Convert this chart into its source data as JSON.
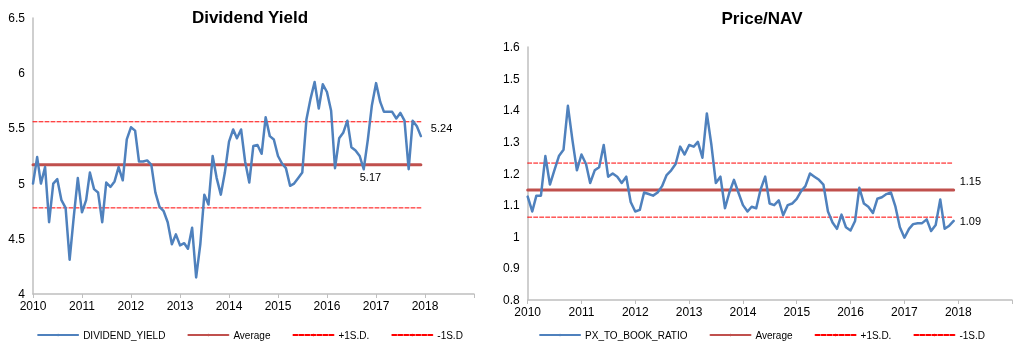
{
  "chart_data": [
    {
      "type": "line",
      "title": "Dividend Yield",
      "marker": "none",
      "legend": "bottom",
      "grid": false,
      "x": [
        "2010-01",
        "2010-02",
        "2010-03",
        "2010-04",
        "2010-05",
        "2010-06",
        "2010-07",
        "2010-08",
        "2010-09",
        "2010-10",
        "2010-11",
        "2010-12",
        "2011-01",
        "2011-02",
        "2011-03",
        "2011-04",
        "2011-05",
        "2011-06",
        "2011-07",
        "2011-08",
        "2011-09",
        "2011-10",
        "2011-11",
        "2011-12",
        "2012-01",
        "2012-02",
        "2012-03",
        "2012-04",
        "2012-05",
        "2012-06",
        "2012-07",
        "2012-08",
        "2012-09",
        "2012-10",
        "2012-11",
        "2012-12",
        "2013-01",
        "2013-02",
        "2013-03",
        "2013-04",
        "2013-05",
        "2013-06",
        "2013-07",
        "2013-08",
        "2013-09",
        "2013-10",
        "2013-11",
        "2013-12",
        "2014-01",
        "2014-02",
        "2014-03",
        "2014-04",
        "2014-05",
        "2014-06",
        "2014-07",
        "2014-08",
        "2014-09",
        "2014-10",
        "2014-11",
        "2014-12",
        "2015-01",
        "2015-02",
        "2015-03",
        "2015-04",
        "2015-05",
        "2015-06",
        "2015-07",
        "2015-08",
        "2015-09",
        "2015-10",
        "2015-11",
        "2015-12",
        "2016-01",
        "2016-02",
        "2016-03",
        "2016-04",
        "2016-05",
        "2016-06",
        "2016-07",
        "2016-08",
        "2016-09",
        "2016-10",
        "2016-11",
        "2016-12",
        "2017-01",
        "2017-02",
        "2017-03",
        "2017-04",
        "2017-05",
        "2017-06",
        "2017-07",
        "2017-08",
        "2017-09",
        "2017-10",
        "2017-11",
        "2017-12"
      ],
      "xlim": [
        "2010",
        "2019"
      ],
      "xticks": [
        "2010",
        "2011",
        "2012",
        "2013",
        "2014",
        "2015",
        "2016",
        "2017",
        "2018",
        {
          "value": "2019",
          "label": null
        }
      ],
      "ylim": [
        4,
        6.5
      ],
      "yticks": [
        4,
        4.5,
        5,
        5.5,
        6,
        6.5
      ],
      "series": [
        {
          "name": "DIVIDEND_YIELD",
          "color": "#4f81bd",
          "line_style": "solid",
          "values": [
            5.0,
            5.24,
            5.0,
            5.15,
            4.65,
            5.0,
            5.04,
            4.85,
            4.78,
            4.31,
            4.7,
            5.05,
            4.74,
            4.85,
            5.1,
            4.95,
            4.92,
            4.65,
            5.01,
            4.97,
            5.02,
            5.15,
            5.03,
            5.4,
            5.51,
            5.48,
            5.2,
            5.2,
            5.21,
            5.17,
            4.92,
            4.79,
            4.75,
            4.65,
            4.45,
            4.54,
            4.44,
            4.46,
            4.41,
            4.6,
            4.15,
            4.45,
            4.9,
            4.81,
            5.25,
            5.05,
            4.9,
            5.1,
            5.38,
            5.49,
            5.41,
            5.49,
            5.2,
            5.01,
            5.34,
            5.35,
            5.27,
            5.6,
            5.43,
            5.4,
            5.25,
            5.18,
            5.14,
            4.98,
            5.0,
            5.05,
            5.1,
            5.58,
            5.77,
            5.92,
            5.68,
            5.9,
            5.83,
            5.66,
            5.14,
            5.41,
            5.46,
            5.57,
            5.33,
            5.3,
            5.25,
            5.13,
            5.4,
            5.71,
            5.91,
            5.74,
            5.65,
            5.65,
            5.65,
            5.59,
            5.64,
            5.57,
            5.13,
            5.57,
            5.52,
            5.43
          ]
        },
        {
          "name": "Average",
          "color": "#c0504d",
          "line_style": "solid",
          "x": [
            "2010-01",
            "2017-12"
          ],
          "values": [
            5.17,
            5.17
          ]
        },
        {
          "name": "+1S.D.",
          "color": "#ff0000",
          "line_style": "dashed",
          "x": [
            "2010-01",
            "2017-12"
          ],
          "values": [
            5.56,
            5.56
          ]
        },
        {
          "name": "-1S.D",
          "color": "#ff0000",
          "line_style": "dashed",
          "x": [
            "2010-01",
            "2017-12"
          ],
          "values": [
            4.78,
            4.78
          ]
        }
      ],
      "annotations": [
        {
          "text": "5.24",
          "x": "2017-12",
          "y": 5.43
        },
        {
          "text": "5.17",
          "x": "2016-10",
          "y": 5.17
        }
      ]
    },
    {
      "type": "line",
      "title": "Price/NAV",
      "marker": "none",
      "legend": "bottom",
      "grid": false,
      "x": [
        "2010-01",
        "2010-02",
        "2010-03",
        "2010-04",
        "2010-05",
        "2010-06",
        "2010-07",
        "2010-08",
        "2010-09",
        "2010-10",
        "2010-11",
        "2010-12",
        "2011-01",
        "2011-02",
        "2011-03",
        "2011-04",
        "2011-05",
        "2011-06",
        "2011-07",
        "2011-08",
        "2011-09",
        "2011-10",
        "2011-11",
        "2011-12",
        "2012-01",
        "2012-02",
        "2012-03",
        "2012-04",
        "2012-05",
        "2012-06",
        "2012-07",
        "2012-08",
        "2012-09",
        "2012-10",
        "2012-11",
        "2012-12",
        "2013-01",
        "2013-02",
        "2013-03",
        "2013-04",
        "2013-05",
        "2013-06",
        "2013-07",
        "2013-08",
        "2013-09",
        "2013-10",
        "2013-11",
        "2013-12",
        "2014-01",
        "2014-02",
        "2014-03",
        "2014-04",
        "2014-05",
        "2014-06",
        "2014-07",
        "2014-08",
        "2014-09",
        "2014-10",
        "2014-11",
        "2014-12",
        "2015-01",
        "2015-02",
        "2015-03",
        "2015-04",
        "2015-05",
        "2015-06",
        "2015-07",
        "2015-08",
        "2015-09",
        "2015-10",
        "2015-11",
        "2015-12",
        "2016-01",
        "2016-02",
        "2016-03",
        "2016-04",
        "2016-05",
        "2016-06",
        "2016-07",
        "2016-08",
        "2016-09",
        "2016-10",
        "2016-11",
        "2016-12",
        "2017-01",
        "2017-02",
        "2017-03",
        "2017-04",
        "2017-05",
        "2017-06",
        "2017-07",
        "2017-08",
        "2017-09",
        "2017-10",
        "2017-11",
        "2017-12"
      ],
      "xlim": [
        "2010",
        "2019"
      ],
      "xticks": [
        "2010",
        "2011",
        "2012",
        "2013",
        "2014",
        "2015",
        "2016",
        "2017",
        "2018",
        {
          "value": "2019",
          "label": null
        }
      ],
      "ylim": [
        0.8,
        1.6
      ],
      "yticks": [
        0.8,
        0.9,
        1,
        1.1,
        1.2,
        1.3,
        1.4,
        1.5,
        1.6
      ],
      "series": [
        {
          "name": "PX_TO_BOOK_RATIO",
          "color": "#4f81bd",
          "line_style": "solid",
          "values": [
            1.127,
            1.08,
            1.13,
            1.13,
            1.255,
            1.165,
            1.21,
            1.255,
            1.275,
            1.414,
            1.305,
            1.21,
            1.26,
            1.23,
            1.17,
            1.21,
            1.22,
            1.29,
            1.19,
            1.2,
            1.19,
            1.17,
            1.19,
            1.11,
            1.08,
            1.085,
            1.14,
            1.135,
            1.13,
            1.14,
            1.16,
            1.195,
            1.21,
            1.23,
            1.285,
            1.26,
            1.29,
            1.285,
            1.3,
            1.25,
            1.39,
            1.29,
            1.17,
            1.19,
            1.09,
            1.14,
            1.18,
            1.14,
            1.1,
            1.08,
            1.095,
            1.09,
            1.15,
            1.19,
            1.105,
            1.1,
            1.115,
            1.068,
            1.1,
            1.105,
            1.12,
            1.145,
            1.16,
            1.2,
            1.19,
            1.18,
            1.165,
            1.08,
            1.045,
            1.025,
            1.07,
            1.03,
            1.02,
            1.05,
            1.155,
            1.105,
            1.095,
            1.075,
            1.12,
            1.125,
            1.135,
            1.14,
            1.095,
            1.03,
            0.997,
            1.025,
            1.04,
            1.043,
            1.043,
            1.055,
            1.018,
            1.037,
            1.118,
            1.025,
            1.035,
            1.05
          ]
        },
        {
          "name": "Average",
          "color": "#c0504d",
          "line_style": "solid",
          "x": [
            "2010-01",
            "2017-12"
          ],
          "values": [
            1.148,
            1.148
          ]
        },
        {
          "name": "+1S.D.",
          "color": "#ff0000",
          "line_style": "dashed",
          "x": [
            "2010-01",
            "2017-12"
          ],
          "values": [
            1.233,
            1.233
          ]
        },
        {
          "name": "-1S.D",
          "color": "#ff0000",
          "line_style": "dashed",
          "x": [
            "2010-01",
            "2017-12"
          ],
          "values": [
            1.062,
            1.062
          ]
        }
      ],
      "annotations": [
        {
          "text": "1.15",
          "x": "2017-12",
          "y": 1.148
        },
        {
          "text": "1.09",
          "x": "2017-12",
          "y": 1.05
        }
      ]
    }
  ]
}
